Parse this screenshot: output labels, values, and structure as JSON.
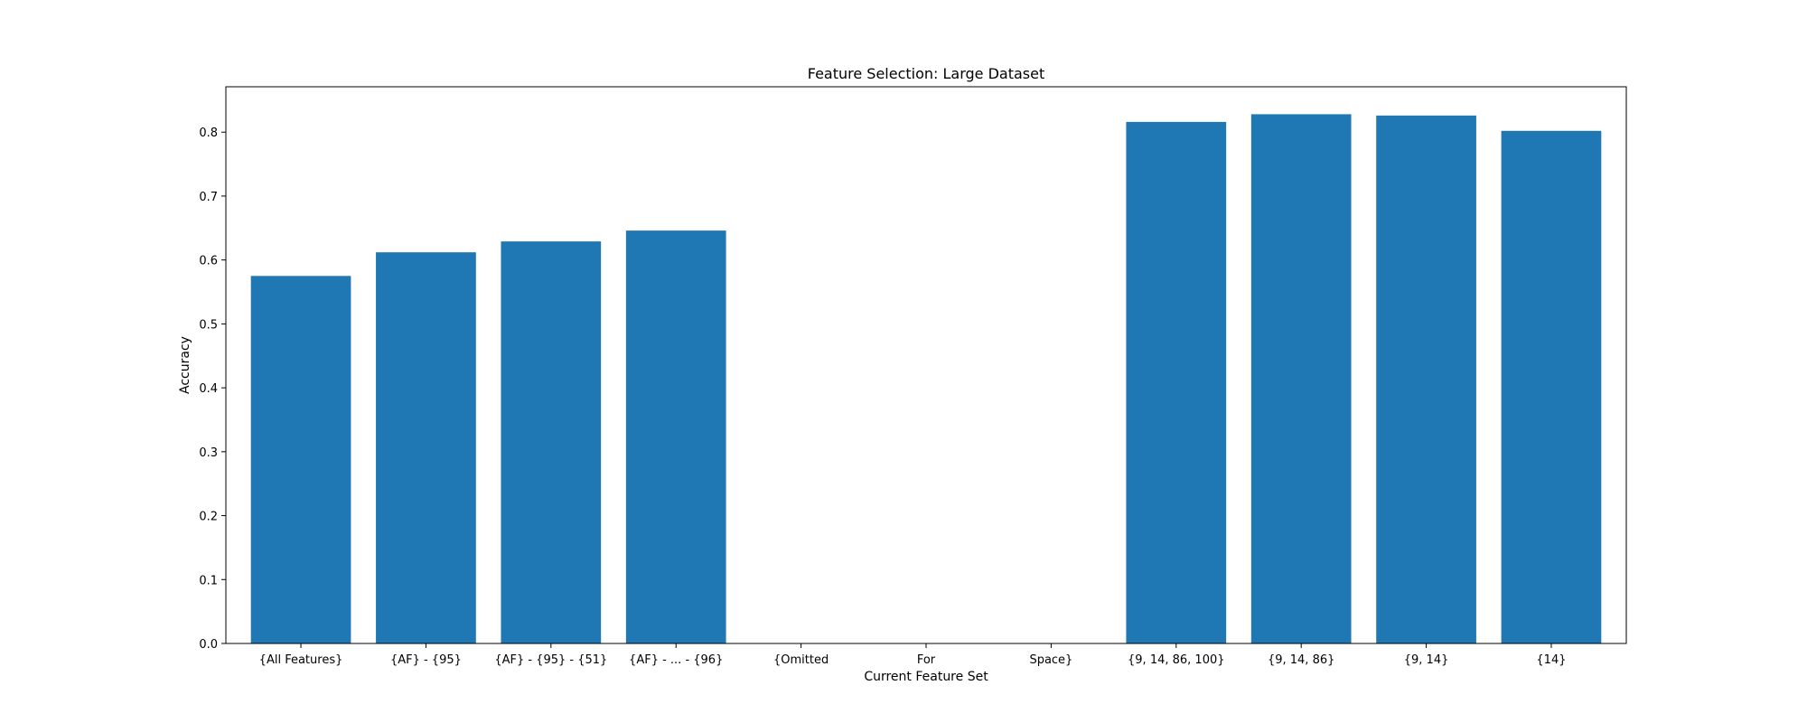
{
  "chart_data": {
    "type": "bar",
    "title": "Feature Selection: Large Dataset",
    "xlabel": "Current Feature Set",
    "ylabel": "Accuracy",
    "categories": [
      "{All Features}",
      "{AF} - {95}",
      "{AF} - {95} - {51}",
      "{AF} - ... - {96}",
      "{Omitted",
      "For",
      "Space}",
      "{9, 14, 86, 100}",
      "{9, 14, 86}",
      "{9, 14}",
      "{14}"
    ],
    "values": [
      0.575,
      0.612,
      0.629,
      0.646,
      0,
      0,
      0,
      0.816,
      0.828,
      0.826,
      0.802
    ],
    "ylim": [
      0,
      0.871
    ],
    "yticks": [
      "0.0",
      "0.1",
      "0.2",
      "0.3",
      "0.4",
      "0.5",
      "0.6",
      "0.7",
      "0.8"
    ],
    "bar_color": "#1f77b4",
    "grid": false,
    "legend": "none"
  }
}
